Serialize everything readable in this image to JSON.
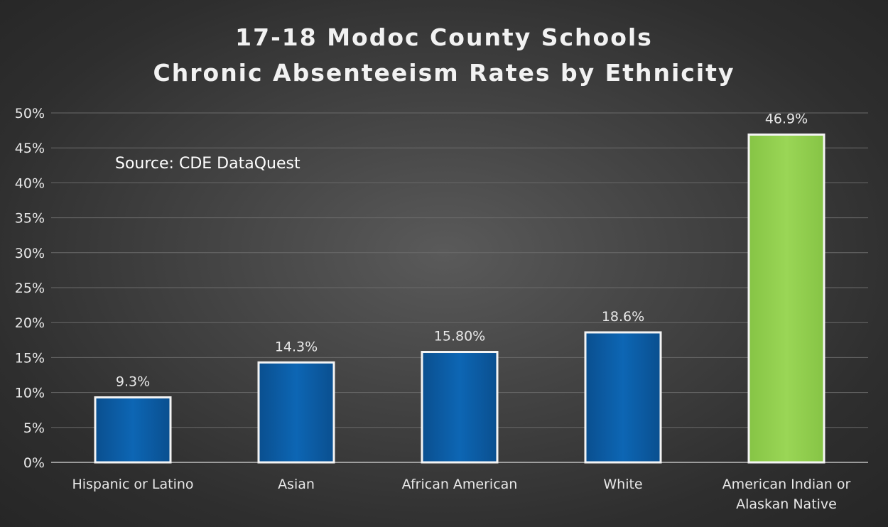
{
  "chart_data": {
    "type": "bar",
    "title_lines": [
      "17-18 Modoc County Schools",
      "Chronic Absenteeism Rates by Ethnicity"
    ],
    "annotation": "Source: CDE  DataQuest",
    "categories": [
      [
        "Hispanic or Latino"
      ],
      [
        "Asian"
      ],
      [
        "African American"
      ],
      [
        "White"
      ],
      [
        "American Indian or",
        "Alaskan Native"
      ]
    ],
    "values": [
      9.3,
      14.3,
      15.8,
      18.6,
      46.9
    ],
    "data_labels": [
      "9.3%",
      "14.3%",
      "15.80%",
      "18.6%",
      "46.9%"
    ],
    "bar_colors": [
      "#0b5fa8",
      "#0b5fa8",
      "#0b5fa8",
      "#0b5fa8",
      "#92d050"
    ],
    "ylim": [
      0,
      50
    ],
    "yticks": [
      0,
      5,
      10,
      15,
      20,
      25,
      30,
      35,
      40,
      45,
      50
    ],
    "ytick_labels": [
      "0%",
      "5%",
      "10%",
      "15%",
      "20%",
      "25%",
      "30%",
      "35%",
      "40%",
      "45%",
      "50%"
    ],
    "grid": true,
    "legend": "none"
  }
}
